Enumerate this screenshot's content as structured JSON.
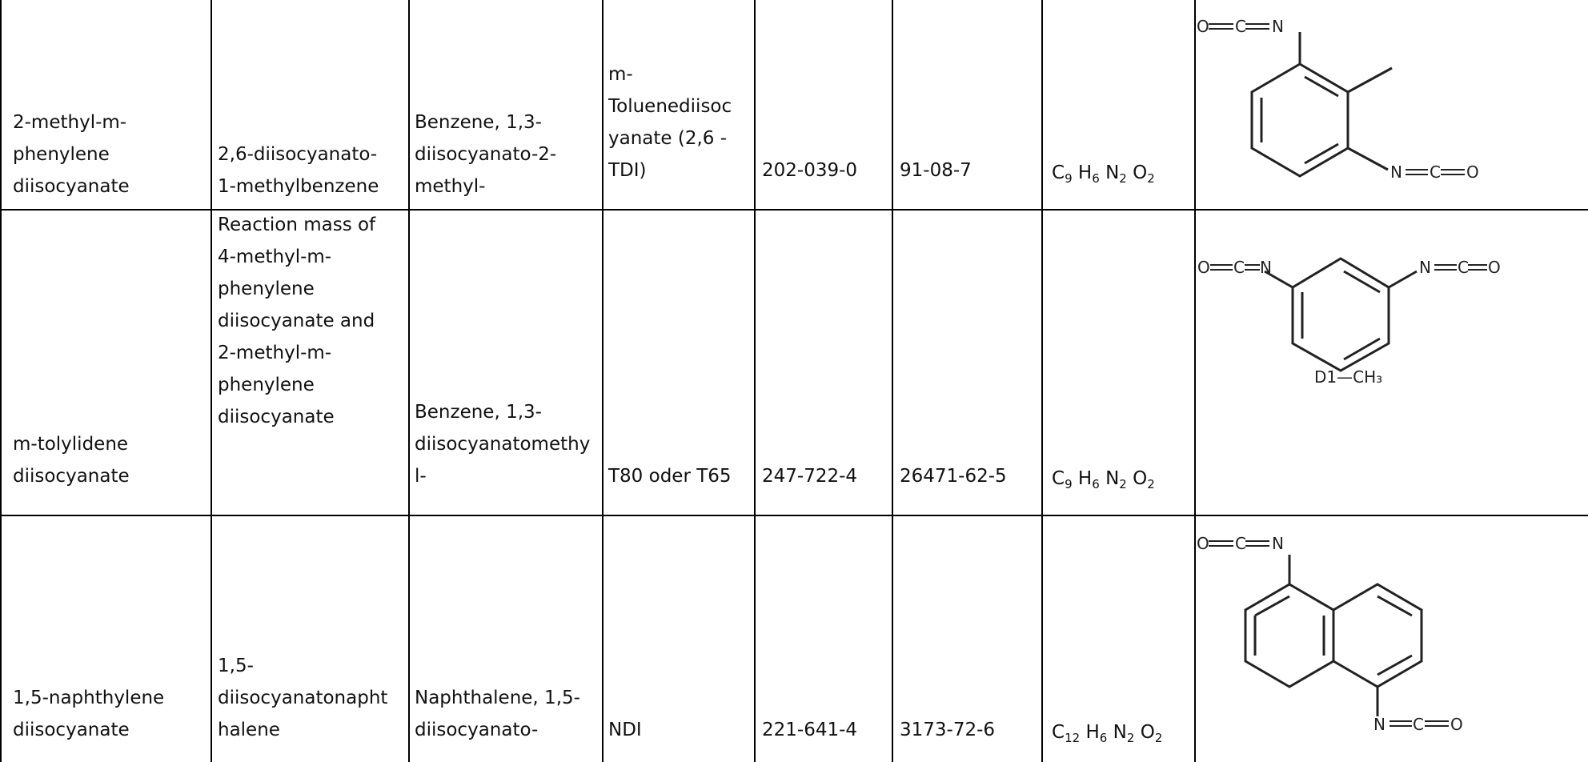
{
  "rows": [
    {
      "chemical_name": "2-methyl-m-\nphenylene\ndiisocyanate",
      "iupac_name": "2,6-diisocyanato-\n1-methylbenzene",
      "index_name": "Benzene, 1,3-\ndiisocyanato-2-\nmethyl-",
      "trade_name": "m-\nToluenediisoc\nyanate (2,6 -\nTDI)",
      "ec_number": "202-039-0",
      "cas_number": "91-08-7",
      "formula": {
        "c": "9",
        "h": "6",
        "n": "2",
        "o": "2"
      },
      "structure": {
        "labels": [
          "O",
          "C",
          "N",
          "N",
          "C",
          "O"
        ]
      }
    },
    {
      "chemical_name": "m-tolylidene\ndiisocyanate",
      "iupac_name": "Reaction mass of\n4-methyl-m-\nphenylene\ndiisocyanate and\n2-methyl-m-\nphenylene\ndiisocyanate",
      "index_name": "Benzene, 1,3-\ndiisocyanatomethy\nl-",
      "trade_name": "T80 oder T65",
      "ec_number": "247-722-4",
      "cas_number": "26471-62-5",
      "formula": {
        "c": "9",
        "h": "6",
        "n": "2",
        "o": "2"
      },
      "structure": {
        "labels": [
          "O",
          "C",
          "N",
          "N",
          "C",
          "O"
        ],
        "caption": "D1—CH₃"
      }
    },
    {
      "chemical_name": "1,5-naphthylene\ndiisocyanate",
      "iupac_name": "1,5-\ndiisocyanatonapht\nhalene",
      "index_name": "Naphthalene, 1,5-\ndiisocyanato-",
      "trade_name": "NDI",
      "ec_number": "221-641-4",
      "cas_number": "3173-72-6",
      "formula": {
        "c": "12",
        "h": "6",
        "n": "2",
        "o": "2"
      },
      "structure": {
        "labels": [
          "O",
          "C",
          "N",
          "N",
          "C",
          "O"
        ]
      }
    }
  ]
}
